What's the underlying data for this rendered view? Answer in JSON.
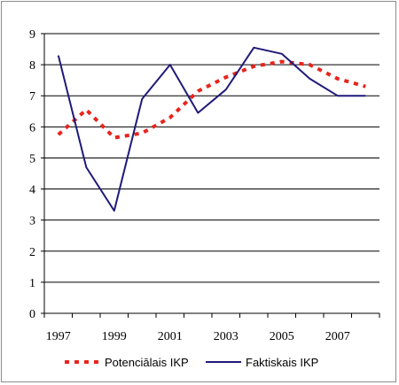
{
  "chart_data": {
    "type": "line",
    "title": "",
    "xlabel": "",
    "ylabel": "",
    "x": [
      1997,
      1998,
      1999,
      2000,
      2001,
      2002,
      2003,
      2004,
      2005,
      2006,
      2007,
      2008
    ],
    "x_tick_labels": [
      "1997",
      "1999",
      "2001",
      "2003",
      "2005",
      "2007"
    ],
    "y_tick_labels": [
      "0",
      "1",
      "2",
      "3",
      "4",
      "5",
      "6",
      "7",
      "8",
      "9"
    ],
    "ylim": [
      0,
      9
    ],
    "grid": true,
    "legend_position": "bottom",
    "series": [
      {
        "name": "Potenciālais IKP",
        "style": "dotted",
        "color": "#e8241c",
        "values": [
          5.75,
          6.55,
          5.65,
          5.8,
          6.3,
          7.15,
          7.6,
          7.95,
          8.1,
          8.0,
          7.55,
          7.3
        ]
      },
      {
        "name": "Faktiskais IKP",
        "style": "solid",
        "color": "#1f1a7a",
        "values": [
          8.3,
          4.7,
          3.3,
          6.9,
          8.0,
          6.45,
          7.2,
          8.55,
          8.35,
          7.55,
          7.0,
          7.0
        ]
      }
    ]
  }
}
